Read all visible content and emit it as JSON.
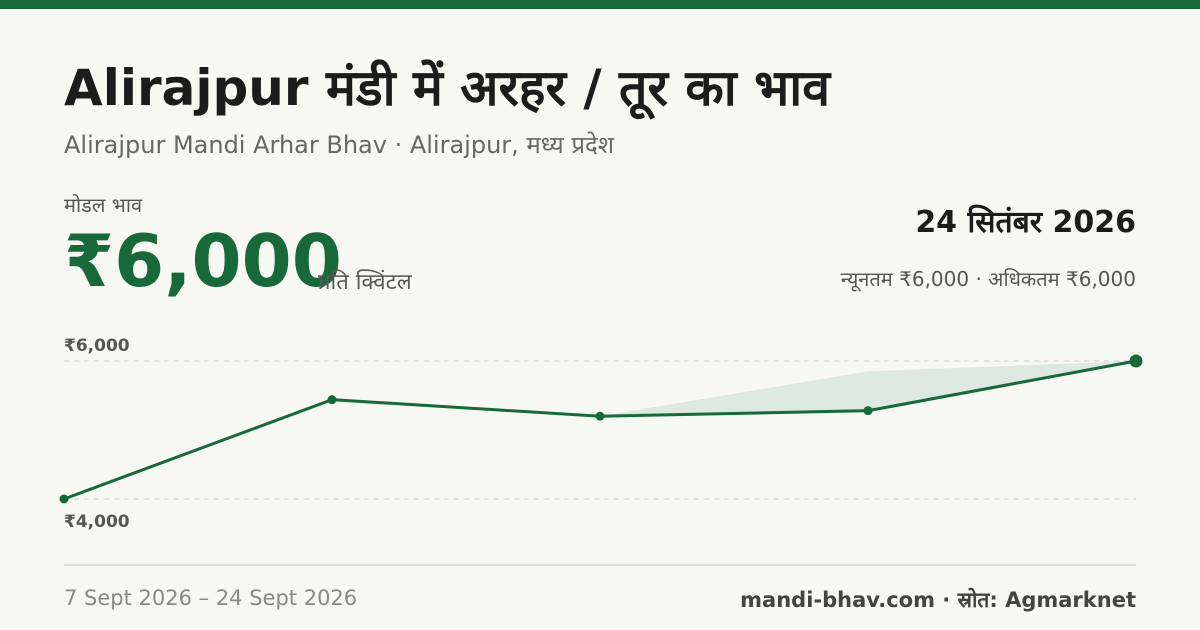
{
  "header": {
    "title": "Alirajpur मंडी में अरहर / तूर का भाव",
    "subtitle": "Alirajpur Mandi Arhar Bhav · Alirajpur, मध्य प्रदेश"
  },
  "summary": {
    "modal_label": "मोडल भाव",
    "price": "₹6,000",
    "unit": "प्रति क्विंटल",
    "date": "24 सितंबर 2026",
    "min_max": "न्यूनतम ₹6,000 · अधिकतम ₹6,000"
  },
  "footer": {
    "date_range": "7 Sept 2026 – 24 Sept 2026",
    "source": "mandi-bhav.com · स्रोत: Agmarknet"
  },
  "colors": {
    "accent": "#17693a",
    "band": "#dde8e0",
    "background": "#f8f8f3"
  },
  "chart_data": {
    "type": "line",
    "ylim": [
      4000,
      6000
    ],
    "y_ticks": [
      "₹6,000",
      "₹4,000"
    ],
    "y_tick_values": [
      6000,
      4000
    ],
    "series": [
      {
        "values": [
          4000,
          5440,
          5200,
          5280,
          6000
        ]
      }
    ],
    "band": {
      "min": [
        4000,
        5400,
        5200,
        5250,
        6000
      ],
      "max": [
        4000,
        5440,
        5200,
        5850,
        6000
      ]
    }
  }
}
